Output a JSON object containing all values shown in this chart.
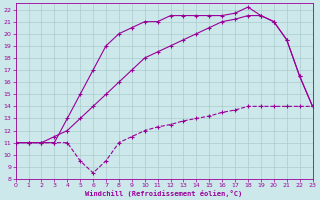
{
  "bg_color": "#cce8ea",
  "grid_color": "#aacccc",
  "line_color": "#990099",
  "xlim": [
    0,
    23
  ],
  "ylim": [
    8,
    22.5
  ],
  "xticks": [
    0,
    1,
    2,
    3,
    4,
    5,
    6,
    7,
    8,
    9,
    10,
    11,
    12,
    13,
    14,
    15,
    16,
    17,
    18,
    19,
    20,
    21,
    22,
    23
  ],
  "yticks": [
    8,
    9,
    10,
    11,
    12,
    13,
    14,
    15,
    16,
    17,
    18,
    19,
    20,
    21,
    22
  ],
  "xlabel": "Windchill (Refroidissement éolien,°C)",
  "line1_x": [
    0,
    1,
    2,
    3,
    4,
    5,
    6,
    7,
    8,
    9,
    10,
    11,
    12,
    13,
    14,
    15,
    16,
    17,
    18,
    19,
    20,
    21,
    22,
    23
  ],
  "line1_y": [
    11,
    11,
    11,
    11,
    11,
    9.5,
    8.5,
    9.5,
    11,
    11.5,
    12,
    12.3,
    12.5,
    12.8,
    13,
    13.2,
    13.5,
    13.7,
    14,
    14,
    14,
    14,
    14,
    14
  ],
  "line2_x": [
    0,
    1,
    2,
    3,
    4,
    5,
    6,
    7,
    8,
    9,
    10,
    11,
    12,
    13,
    14,
    15,
    16,
    17,
    18,
    19,
    20,
    21,
    22,
    23
  ],
  "line2_y": [
    11,
    11,
    11,
    11,
    13,
    15,
    17,
    19,
    20,
    20.5,
    21,
    21,
    21.5,
    21.5,
    21.5,
    21.5,
    21.5,
    21.7,
    22.2,
    21.5,
    21,
    19.5,
    16.5,
    14
  ],
  "line3_x": [
    0,
    1,
    2,
    3,
    4,
    5,
    6,
    7,
    8,
    9,
    10,
    11,
    12,
    13,
    14,
    15,
    16,
    17,
    18,
    19,
    20,
    21,
    22,
    23
  ],
  "line3_y": [
    11,
    11,
    11,
    11.5,
    12,
    13,
    14,
    15,
    16,
    17,
    18,
    18.5,
    19,
    19.5,
    20,
    20.5,
    21,
    21.2,
    21.5,
    21.5,
    21,
    19.5,
    16.5,
    14
  ]
}
